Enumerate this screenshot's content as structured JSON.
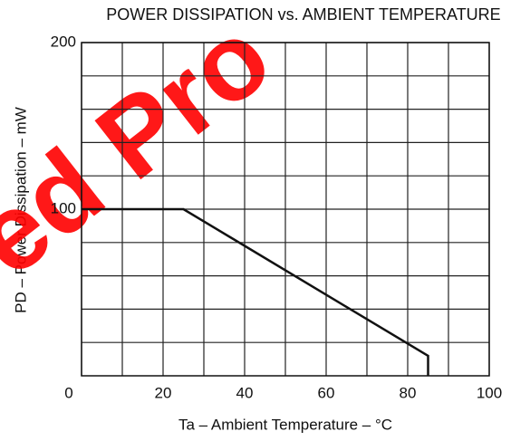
{
  "chart_data": {
    "type": "line",
    "title": "POWER DISSIPATION vs. AMBIENT TEMPERATURE",
    "xlabel": "Ta – Ambient Temperature – °C",
    "ylabel": "PD – Power Dissipation – mW",
    "watermark": "ed Pro",
    "x": [
      0,
      25,
      85,
      85
    ],
    "series": [
      {
        "color": "#111111",
        "values": [
          100,
          100,
          12,
          0
        ]
      }
    ],
    "xlim": [
      0,
      100
    ],
    "xticks": [
      0,
      20,
      40,
      60,
      80,
      100
    ],
    "minor_xticks": [
      10,
      30,
      50,
      70,
      90
    ],
    "ylim": [
      0,
      200
    ],
    "yticks": [
      100,
      200
    ],
    "minor_yticks": [
      20,
      40,
      60,
      80,
      120,
      140,
      160,
      180
    ],
    "grid": true
  }
}
